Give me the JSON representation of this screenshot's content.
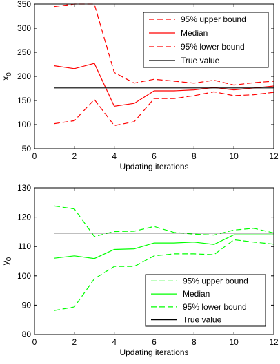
{
  "chart_data": [
    {
      "type": "line",
      "xlabel": "Updating iterations",
      "ylabel_main": "x",
      "ylabel_sub": "0",
      "xlim": [
        0,
        12
      ],
      "ylim": [
        50,
        350
      ],
      "xticks": [
        0,
        2,
        4,
        6,
        8,
        10,
        12
      ],
      "yticks": [
        50,
        100,
        150,
        200,
        250,
        300,
        350
      ],
      "x": [
        1,
        2,
        3,
        4,
        5,
        6,
        7,
        8,
        9,
        10,
        11,
        12
      ],
      "legend_position": "top-right",
      "series": [
        {
          "name": "95% upper bound",
          "color": "#ff0000",
          "dash": "dashed",
          "values": [
            345,
            350,
            350,
            208,
            186,
            194,
            190,
            186,
            192,
            182,
            187,
            190
          ]
        },
        {
          "name": "Median",
          "color": "#ff0000",
          "dash": "solid",
          "values": [
            222,
            216,
            227,
            138,
            144,
            170,
            170,
            172,
            177,
            172,
            176,
            180
          ]
        },
        {
          "name": "95% lower bound",
          "color": "#ff0000",
          "dash": "dashed",
          "values": [
            102,
            108,
            152,
            98,
            106,
            154,
            154,
            160,
            168,
            160,
            162,
            167
          ]
        },
        {
          "name": "True value",
          "color": "#000000",
          "dash": "solid",
          "values": [
            176,
            176,
            176,
            176,
            176,
            176,
            176,
            176,
            176,
            176,
            176,
            176
          ]
        }
      ]
    },
    {
      "type": "line",
      "xlabel": "Updating iterations",
      "ylabel_main": "y",
      "ylabel_sub": "0",
      "xlim": [
        0,
        12
      ],
      "ylim": [
        80,
        130
      ],
      "xticks": [
        0,
        2,
        4,
        6,
        8,
        10,
        12
      ],
      "yticks": [
        80,
        90,
        100,
        110,
        120,
        130
      ],
      "x": [
        1,
        2,
        3,
        4,
        5,
        6,
        7,
        8,
        9,
        10,
        11,
        12
      ],
      "legend_position": "bottom-right",
      "series": [
        {
          "name": "95% upper bound",
          "color": "#00ff00",
          "dash": "dashed",
          "values": [
            123.8,
            122.8,
            113.4,
            115.1,
            115.2,
            116.8,
            114.8,
            114.2,
            113.9,
            115.6,
            116.2,
            114.6
          ]
        },
        {
          "name": "Median",
          "color": "#00ff00",
          "dash": "solid",
          "values": [
            106.0,
            106.8,
            105.9,
            109.0,
            109.2,
            111.2,
            111.2,
            111.5,
            110.7,
            114.0,
            114.0,
            114.0
          ]
        },
        {
          "name": "95% lower bound",
          "color": "#00ff00",
          "dash": "dashed",
          "values": [
            88.2,
            89.4,
            99.0,
            103.2,
            103.2,
            106.8,
            107.5,
            107.5,
            107.2,
            112.3,
            111.5,
            110.8
          ]
        },
        {
          "name": "True value",
          "color": "#000000",
          "dash": "solid",
          "values": [
            114.6,
            114.6,
            114.6,
            114.6,
            114.6,
            114.6,
            114.6,
            114.6,
            114.6,
            114.6,
            114.6,
            114.6
          ]
        }
      ]
    }
  ]
}
